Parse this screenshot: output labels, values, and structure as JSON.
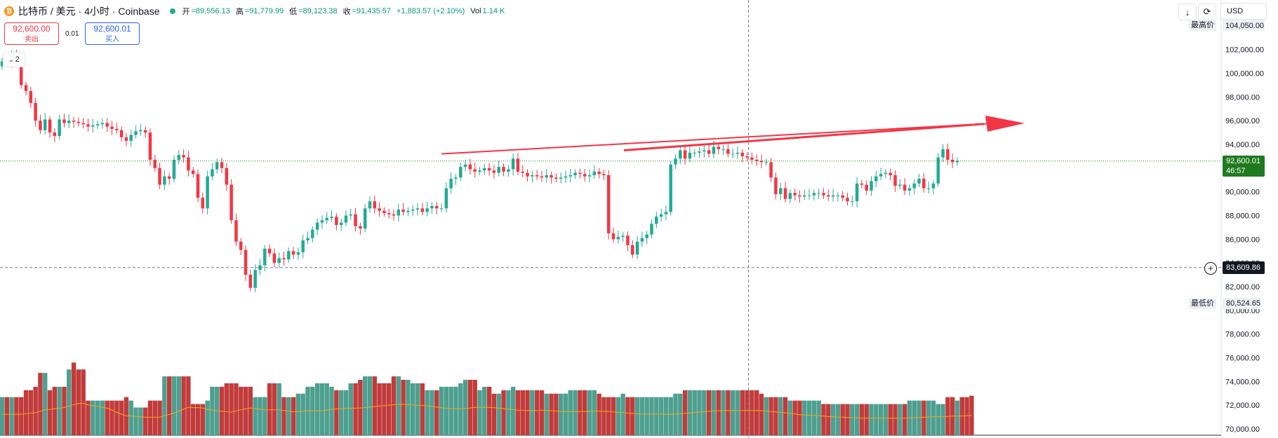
{
  "header": {
    "coin_icon": "bitcoin-icon",
    "symbol": "比特币 / 美元 · 4小时 · Coinbase",
    "open_label": "开",
    "open_value": "=89,556.13",
    "high_label": "高",
    "high_value": "=91,779.99",
    "low_label": "低",
    "low_value": "=89,123.38",
    "close_label": "收",
    "close_value": "=91,435.57",
    "change": "+1,883.57 (+2.10%)",
    "vol_label": "Vol",
    "vol_value": "1.14 K"
  },
  "trade": {
    "sell_price": "92,600.00",
    "sell_label": "卖出",
    "spread": "0.01",
    "buy_price": "92,600.01",
    "buy_label": "买入"
  },
  "indicator_toggle": {
    "label": "2",
    "icon": "chevron-down-icon"
  },
  "toolbar": {
    "scale_icon": "arrow-down-icon",
    "refresh_icon": "refresh-icon",
    "currency": "USD"
  },
  "price_axis": {
    "ticks": [
      "104,050.00",
      "102,000.00",
      "100,000.00",
      "98,000.00",
      "96,000.00",
      "94,000.00",
      "92,000.00",
      "90,000.00",
      "88,000.00",
      "86,000.00",
      "84,000.00",
      "82,000.00",
      "80,000.00",
      "78,000.00",
      "76,000.00",
      "74,000.00",
      "72,000.00",
      "70,000.00"
    ],
    "high_label": "最高价",
    "high_value": "104,050.00",
    "low_label": "最低价",
    "low_value": "80,524.65",
    "current_price": "92,600.01",
    "countdown": "46:57",
    "crosshair_price": "83,609.86"
  },
  "colors": {
    "up": "#22ab94",
    "down": "#f23645",
    "volume_up": "#4d9f8f",
    "volume_down": "#c23b3b",
    "ma": "#f5a623",
    "arrow": "#f23645",
    "current_tag": "#1f7a1f"
  },
  "chart_data": {
    "type": "candlestick",
    "ylim": [
      70000,
      104050
    ],
    "current_price": 92600.01,
    "crosshair_price": 83609.86,
    "trendline": {
      "from_price": 93200,
      "to_price": 95900
    },
    "closes": [
      101000,
      100900,
      101500,
      101000,
      99000,
      98500,
      97500,
      96000,
      95200,
      96100,
      95000,
      94700,
      96100,
      95800,
      96000,
      95900,
      95800,
      95700,
      95500,
      95600,
      95700,
      95800,
      95500,
      95300,
      95200,
      94600,
      94300,
      94800,
      95100,
      95200,
      95000,
      92700,
      92000,
      90600,
      91300,
      91100,
      92700,
      93100,
      92900,
      91800,
      91500,
      89500,
      88600,
      91300,
      91900,
      92500,
      92000,
      90600,
      87600,
      85800,
      85100,
      83000,
      81900,
      83400,
      83800,
      85200,
      84800,
      84000,
      84400,
      84300,
      85000,
      84700,
      84900,
      85900,
      86100,
      86800,
      87400,
      87600,
      87800,
      87900,
      87200,
      87400,
      88000,
      88100,
      87100,
      86900,
      88600,
      89200,
      88600,
      88400,
      88200,
      88100,
      88000,
      88500,
      88300,
      88400,
      88500,
      88600,
      88300,
      88600,
      88800,
      88600,
      88600,
      90300,
      91100,
      91200,
      92100,
      92300,
      91900,
      91700,
      91800,
      92000,
      91800,
      91600,
      92100,
      91700,
      91900,
      92800,
      91700,
      91600,
      91300,
      91400,
      91300,
      91200,
      91400,
      91200,
      91100,
      91200,
      91300,
      91400,
      91600,
      91500,
      91300,
      91400,
      91700,
      91500,
      91400,
      86500,
      86000,
      86200,
      86300,
      85500,
      84700,
      85800,
      86100,
      86400,
      87300,
      87900,
      88100,
      88300,
      92300,
      92800,
      93500,
      92800,
      93300,
      93300,
      93400,
      93500,
      93200,
      93800,
      93600,
      93600,
      93200,
      93200,
      93300,
      93000,
      92900,
      92700,
      92600,
      92500,
      92500,
      91200,
      89800,
      90300,
      89400,
      89900,
      89700,
      89600,
      89700,
      89700,
      89900,
      89900,
      89700,
      89600,
      89700,
      89700,
      89500,
      89200,
      89200,
      90700,
      90600,
      90100,
      90900,
      91300,
      91500,
      91600,
      91400,
      90500,
      90600,
      90100,
      90300,
      90700,
      91100,
      90300,
      90300,
      90700,
      92900,
      93600,
      92700,
      92500,
      92600
    ],
    "volumes": [
      1100,
      1100,
      1100,
      1100,
      1100,
      1300,
      1300,
      1400,
      1800,
      1800,
      1300,
      1400,
      1400,
      1400,
      1900,
      2100,
      1900,
      1900,
      1000,
      1000,
      1000,
      1000,
      1000,
      1000,
      1000,
      1000,
      1100,
      1000,
      800,
      800,
      800,
      1000,
      1000,
      1000,
      1700,
      1700,
      1700,
      1700,
      1700,
      1700,
      900,
      900,
      900,
      1000,
      1400,
      1400,
      1400,
      1500,
      1500,
      1500,
      1400,
      1400,
      1400,
      1100,
      1100,
      1100,
      1500,
      1500,
      1500,
      1100,
      1100,
      1100,
      1200,
      1200,
      1400,
      1400,
      1500,
      1500,
      1500,
      1400,
      1300,
      1300,
      1300,
      1500,
      1500,
      1600,
      1700,
      1700,
      1700,
      1500,
      1500,
      1500,
      1700,
      1700,
      1600,
      1600,
      1500,
      1500,
      1500,
      1300,
      1300,
      1300,
      1400,
      1400,
      1400,
      1400,
      1500,
      1600,
      1600,
      1600,
      1300,
      1400,
      1400,
      1200,
      1200,
      1300,
      1300,
      1400,
      1300,
      1300,
      1300,
      1300,
      1300,
      1300,
      1200,
      1200,
      1200,
      1200,
      1200,
      1300,
      1300,
      1300,
      1300,
      1300,
      1300,
      1200,
      1100,
      1100,
      1100,
      1100,
      1200,
      1100,
      1100,
      1100,
      1100,
      1100,
      1100,
      1100,
      1100,
      1100,
      1100,
      1200,
      1200,
      1300,
      1300,
      1300,
      1300,
      1300,
      1300,
      1300,
      1300,
      1300,
      1300,
      1300,
      1300,
      1300,
      1300,
      1300,
      1300,
      1200,
      1100,
      1100,
      1100,
      1100,
      1100,
      1000,
      1000,
      1000,
      1000,
      1000,
      1000,
      1000,
      900,
      900,
      900,
      900,
      900,
      900,
      900,
      900,
      900,
      900,
      900,
      900,
      900,
      900,
      900,
      900,
      900,
      900,
      1000,
      1000,
      1000,
      1000,
      1000,
      1000,
      900,
      900,
      1100,
      1100,
      1000,
      1100,
      1100,
      1140
    ]
  }
}
